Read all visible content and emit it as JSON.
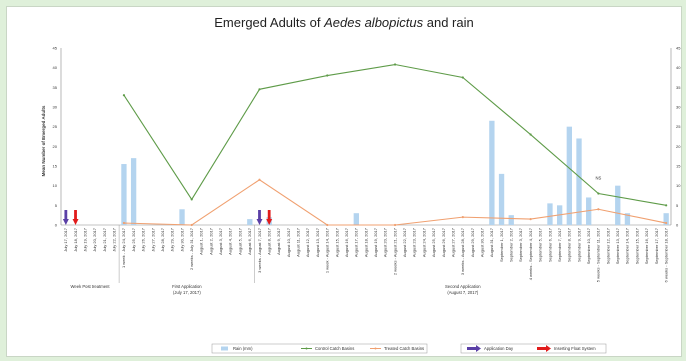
{
  "chart_data": {
    "type": "bar+line",
    "title_prefix": "Emerged Adults of ",
    "title_species": "Aedes albopictus",
    "title_suffix": " and rain",
    "ylabel": "Mean Number of Emerged Adults",
    "ylim": [
      0,
      45
    ],
    "yticks": [
      0,
      5,
      10,
      15,
      20,
      25,
      30,
      35,
      40,
      45
    ],
    "ylim_right": [
      0,
      45
    ],
    "categories": [
      "July 17, 2017",
      "July 18, 2017",
      "July 19, 2017",
      "July 20, 2017",
      "July 21, 2017",
      "July 22, 2017",
      "1 week - July 24, 2017",
      "July 25, 2017",
      "July 26, 2017",
      "July 27, 2017",
      "July 28, 2017",
      "July 29, 2017",
      "July 30, 2017",
      "2 weeks - July 31, 2017",
      "August 1, 2017",
      "August 2, 2017",
      "August 3, 2017",
      "August 4, 2017",
      "August 5, 2017",
      "August 6, 2017",
      "3 weeks - August 7, 2017",
      "August 8, 2017",
      "August 9, 2017",
      "August 10, 2017",
      "August 11, 2017",
      "August 12, 2017",
      "August 13, 2017",
      "1 week - August 14, 2017",
      "August 15, 2017",
      "August 16, 2017",
      "August 17, 2017",
      "August 18, 2017",
      "August 19, 2017",
      "August 20, 2017",
      "2 weeks - August 21, 2017",
      "August 22, 2017",
      "August 23, 2017",
      "August 24, 2017",
      "August 25, 2017",
      "August 26, 2017",
      "August 27, 2017",
      "3 weeks - August 28, 2017",
      "August 29, 2017",
      "August 30, 2017",
      "August 31, 2017",
      "September 1, 2017",
      "September 2, 2017",
      "September 3, 2017",
      "4 weeks - September 4, 2017",
      "September 5, 2017",
      "September 6, 2017",
      "September 7, 2017",
      "September 8, 2017",
      "September 9, 2017",
      "September 10, 2017",
      "5 weeks - September 11, 2017",
      "September 12, 2017",
      "September 13, 2017",
      "September 14, 2017",
      "September 15, 2017",
      "September 16, 2017",
      "September 17, 2017",
      "6 weeks - September 18, 2017"
    ],
    "series": [
      {
        "name": "Rain (mm)",
        "kind": "bar",
        "color": "#b4d4ef",
        "points": [
          [
            6,
            15.5
          ],
          [
            7,
            17
          ],
          [
            12,
            4
          ],
          [
            19,
            1.5
          ],
          [
            21,
            2
          ],
          [
            30,
            3
          ],
          [
            44,
            26.5
          ],
          [
            45,
            13
          ],
          [
            46,
            2.5
          ],
          [
            50,
            5.5
          ],
          [
            51,
            5
          ],
          [
            52,
            25
          ],
          [
            53,
            22
          ],
          [
            54,
            7
          ],
          [
            57,
            10
          ],
          [
            58,
            3
          ],
          [
            62,
            3
          ]
        ]
      },
      {
        "name": "Control Catch Basins",
        "kind": "line",
        "color": "#5e9b48",
        "points": [
          [
            6,
            33
          ],
          [
            13,
            6.5
          ],
          [
            20,
            34.5
          ],
          [
            27,
            38
          ],
          [
            34,
            40.8
          ],
          [
            41,
            37.5
          ],
          [
            48,
            23
          ],
          [
            55,
            8
          ],
          [
            62,
            5
          ]
        ]
      },
      {
        "name": "Treated Catch Basins",
        "kind": "line",
        "color": "#f0a070",
        "points": [
          [
            6,
            0.5
          ],
          [
            13,
            0
          ],
          [
            20,
            11.5
          ],
          [
            27,
            0
          ],
          [
            34,
            0
          ],
          [
            41,
            2
          ],
          [
            48,
            1.5
          ],
          [
            55,
            4
          ],
          [
            62,
            0.5
          ]
        ]
      }
    ],
    "markers": [
      {
        "name": "Application Day",
        "color": "#5a3fa6",
        "positions": [
          0,
          20
        ]
      },
      {
        "name": "Inserting Float System",
        "color": "#e11b1b",
        "positions": [
          1,
          21
        ]
      }
    ],
    "point_label": {
      "text": "NS",
      "index": 55,
      "value": 11
    },
    "groups": [
      {
        "label": "Week Post treatment",
        "from": 0,
        "to": 5
      },
      {
        "label": "First Application",
        "sublabel": "(July 17, 2017)",
        "from": 6,
        "to": 19
      },
      {
        "label": "Second Application",
        "sublabel": "(August 7, 2017)",
        "from": 20,
        "to": 62
      }
    ],
    "grid": false,
    "legend_position": "bottom"
  }
}
